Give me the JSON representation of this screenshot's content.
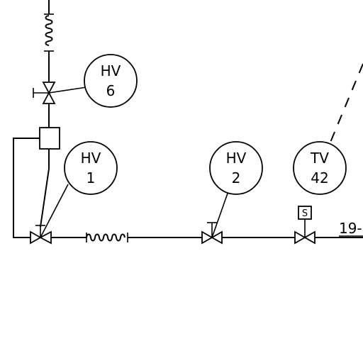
{
  "diagram": {
    "instruments": [
      {
        "id": "hv6",
        "function": "HV",
        "number": "6"
      },
      {
        "id": "hv1",
        "function": "HV",
        "number": "1"
      },
      {
        "id": "hv2",
        "function": "HV",
        "number": "2"
      },
      {
        "id": "tv42",
        "function": "TV",
        "number": "42"
      }
    ],
    "solenoid_label": "S",
    "line_label": "19-"
  },
  "colors": {
    "stroke": "#000000",
    "background": "#ffffff"
  }
}
